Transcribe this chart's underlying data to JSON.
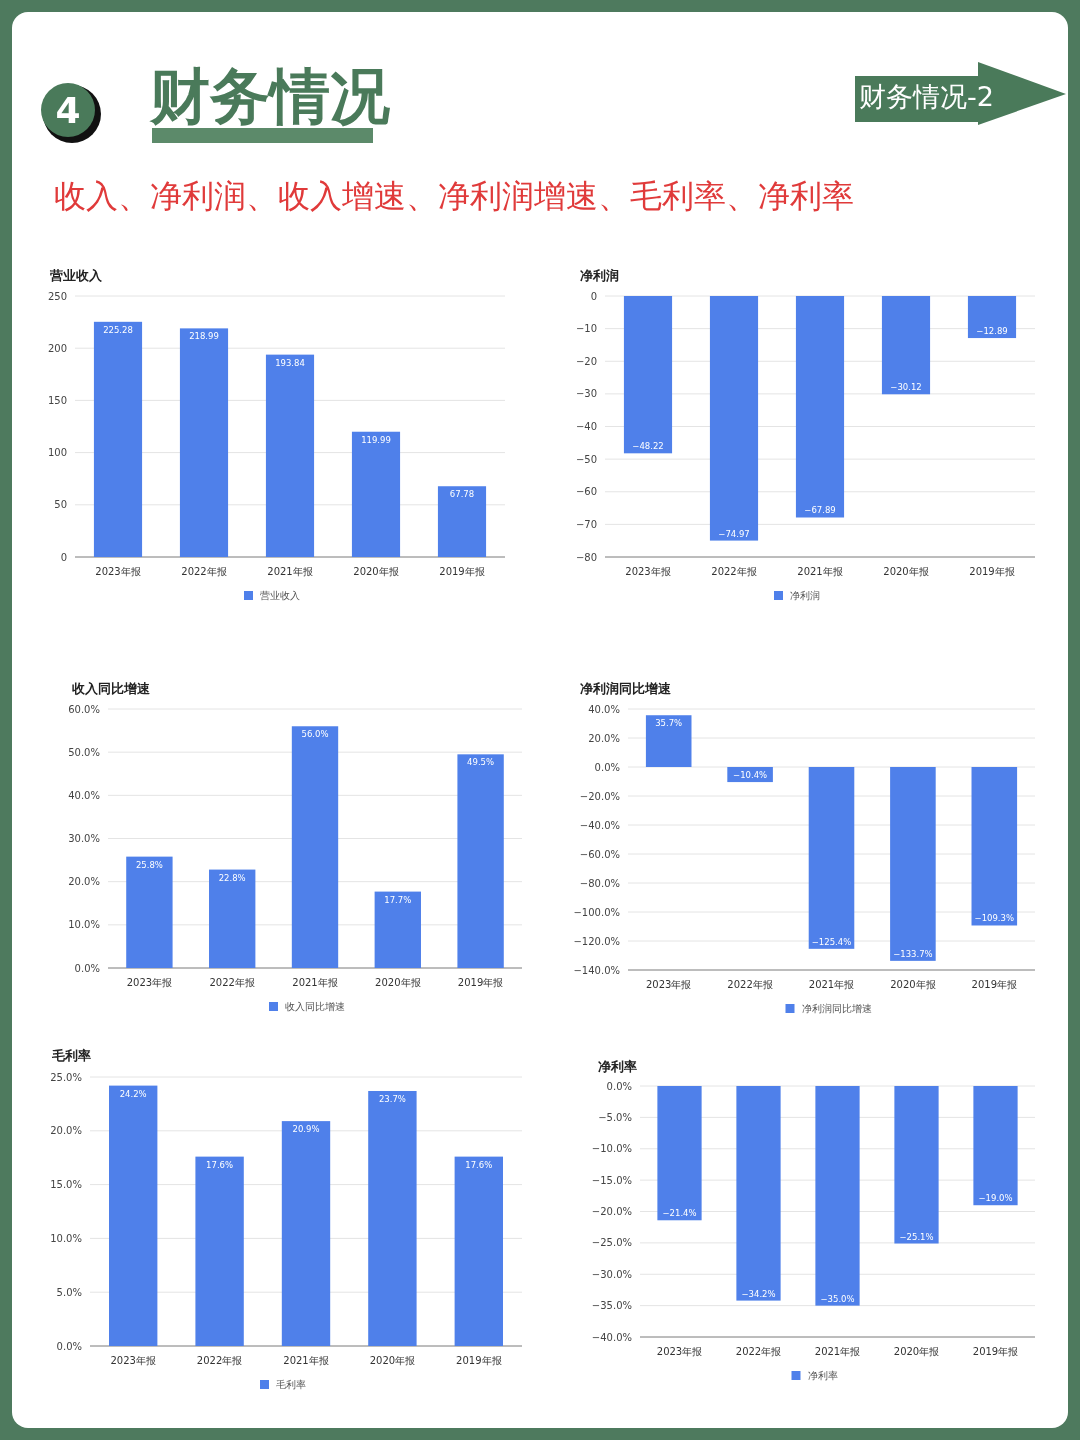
{
  "chart_data": [
    {
      "type": "other",
      "title": "财务情况",
      "subtitle": "收入、净利润、收入增速、净利润增速、毛利率、净利率",
      "annotations": [
        "4",
        "财务情况-2"
      ]
    },
    {
      "type": "bar",
      "title": "营业收入",
      "categories": [
        "2023年报",
        "2022年报",
        "2021年报",
        "2020年报",
        "2019年报"
      ],
      "series": [
        {
          "name": "营业收入",
          "color": "#4f80ea",
          "values": [
            225.28,
            218.99,
            193.84,
            119.99,
            67.78
          ],
          "value_labels": [
            "225.28",
            "218.99",
            "193.84",
            "119.99",
            "67.78"
          ]
        }
      ],
      "ylim": [
        0,
        250
      ],
      "yticks": [
        0,
        50,
        100,
        150,
        200,
        250
      ],
      "grid": "y",
      "legend": "bottom"
    },
    {
      "type": "bar",
      "title": "净利润",
      "categories": [
        "2023年报",
        "2022年报",
        "2021年报",
        "2020年报",
        "2019年报"
      ],
      "series": [
        {
          "name": "净利润",
          "color": "#4f80ea",
          "values": [
            -48.22,
            -74.97,
            -67.89,
            -30.12,
            -12.89
          ],
          "value_labels": [
            "−48.22",
            "−74.97",
            "−67.89",
            "−30.12",
            "−12.89"
          ]
        }
      ],
      "ylim": [
        -80,
        0
      ],
      "yticks": [
        {
          "value": -80,
          "label": "−80"
        },
        {
          "value": -70,
          "label": "−70"
        },
        {
          "value": -60,
          "label": "−60"
        },
        {
          "value": -50,
          "label": "−50"
        },
        {
          "value": -40,
          "label": "−40"
        },
        {
          "value": -30,
          "label": "−30"
        },
        {
          "value": -20,
          "label": "−20"
        },
        {
          "value": -10,
          "label": "−10"
        },
        0
      ],
      "grid": "y",
      "legend": "bottom"
    },
    {
      "type": "bar",
      "title": "收入同比增速",
      "categories": [
        "2023年报",
        "2022年报",
        "2021年报",
        "2020年报",
        "2019年报"
      ],
      "series": [
        {
          "name": "收入同比增速",
          "color": "#4f80ea",
          "values": [
            25.8,
            22.8,
            56.0,
            17.7,
            49.5
          ],
          "value_labels": [
            "25.8%",
            "22.8%",
            "56.0%",
            "17.7%",
            "49.5%"
          ]
        }
      ],
      "ylim": [
        0,
        60
      ],
      "yticks": [
        {
          "value": 0,
          "label": "0.0%"
        },
        {
          "value": 10,
          "label": "10.0%"
        },
        {
          "value": 20,
          "label": "20.0%"
        },
        {
          "value": 30,
          "label": "30.0%"
        },
        {
          "value": 40,
          "label": "40.0%"
        },
        {
          "value": 50,
          "label": "50.0%"
        },
        {
          "value": 60,
          "label": "60.0%"
        }
      ],
      "grid": "y",
      "legend": "bottom"
    },
    {
      "type": "bar",
      "title": "净利润同比增速",
      "categories": [
        "2023年报",
        "2022年报",
        "2021年报",
        "2020年报",
        "2019年报"
      ],
      "series": [
        {
          "name": "净利润同比增速",
          "color": "#4f80ea",
          "values": [
            35.7,
            -10.4,
            -125.4,
            -133.7,
            -109.3
          ],
          "value_labels": [
            "35.7%",
            "−10.4%",
            "−125.4%",
            "−133.7%",
            "−109.3%"
          ]
        }
      ],
      "ylim": [
        -140,
        40
      ],
      "yticks": [
        {
          "value": -140,
          "label": "−140.0%"
        },
        {
          "value": -120,
          "label": "−120.0%"
        },
        {
          "value": -100,
          "label": "−100.0%"
        },
        {
          "value": -80,
          "label": "−80.0%"
        },
        {
          "value": -60,
          "label": "−60.0%"
        },
        {
          "value": -40,
          "label": "−40.0%"
        },
        {
          "value": -20,
          "label": "−20.0%"
        },
        {
          "value": 0,
          "label": "0.0%"
        },
        {
          "value": 20,
          "label": "20.0%"
        },
        {
          "value": 40,
          "label": "40.0%"
        }
      ],
      "grid": "y",
      "legend": "bottom"
    },
    {
      "type": "bar",
      "title": "毛利率",
      "categories": [
        "2023年报",
        "2022年报",
        "2021年报",
        "2020年报",
        "2019年报"
      ],
      "series": [
        {
          "name": "毛利率",
          "color": "#4f80ea",
          "values": [
            24.2,
            17.6,
            20.9,
            23.7,
            17.6
          ],
          "value_labels": [
            "24.2%",
            "17.6%",
            "20.9%",
            "23.7%",
            "17.6%"
          ]
        }
      ],
      "ylim": [
        0,
        25
      ],
      "yticks": [
        {
          "value": 0,
          "label": "0.0%"
        },
        {
          "value": 5,
          "label": "5.0%"
        },
        {
          "value": 10,
          "label": "10.0%"
        },
        {
          "value": 15,
          "label": "15.0%"
        },
        {
          "value": 20,
          "label": "20.0%"
        },
        {
          "value": 25,
          "label": "25.0%"
        }
      ],
      "grid": "y",
      "legend": "bottom"
    },
    {
      "type": "bar",
      "title": "净利率",
      "categories": [
        "2023年报",
        "2022年报",
        "2021年报",
        "2020年报",
        "2019年报"
      ],
      "series": [
        {
          "name": "净利率",
          "color": "#4f80ea",
          "values": [
            -21.4,
            -34.2,
            -35.0,
            -25.1,
            -19.0
          ],
          "value_labels": [
            "−21.4%",
            "−34.2%",
            "−35.0%",
            "−25.1%",
            "−19.0%"
          ]
        }
      ],
      "ylim": [
        -40,
        0
      ],
      "yticks": [
        {
          "value": -40,
          "label": "−40.0%"
        },
        {
          "value": -35,
          "label": "−35.0%"
        },
        {
          "value": -30,
          "label": "−30.0%"
        },
        {
          "value": -25,
          "label": "−25.0%"
        },
        {
          "value": -20,
          "label": "−20.0%"
        },
        {
          "value": -15,
          "label": "−15.0%"
        },
        {
          "value": -10,
          "label": "−10.0%"
        },
        {
          "value": -5,
          "label": "−5.0%"
        },
        {
          "value": 0,
          "label": "0.0%"
        }
      ],
      "grid": "y",
      "legend": "bottom"
    }
  ]
}
